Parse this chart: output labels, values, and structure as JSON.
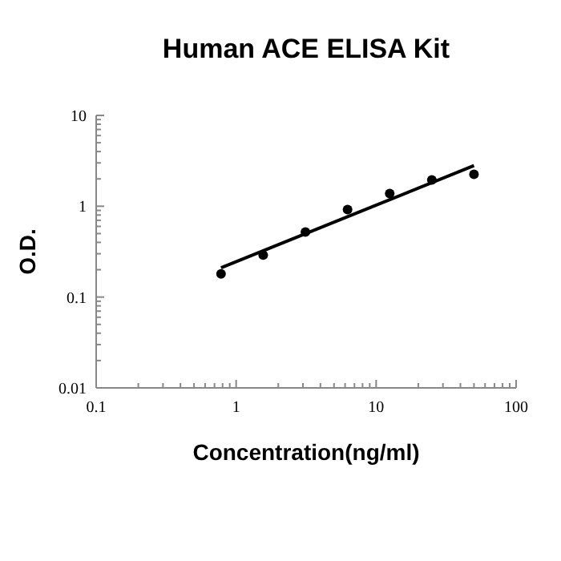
{
  "chart_data": {
    "type": "scatter",
    "title": "Human ACE ELISA Kit",
    "xlabel": "Concentration(ng/ml)",
    "ylabel": "O.D.",
    "log": "xy",
    "marker": "circle",
    "grid": false,
    "xlim": [
      0.1,
      100
    ],
    "ylim": [
      0.01,
      10
    ],
    "xticks": [
      0.1,
      {
        "value": 0.2,
        "label": null
      },
      {
        "value": 0.3,
        "label": null
      },
      {
        "value": 0.4,
        "label": null
      },
      {
        "value": 0.5,
        "label": null
      },
      {
        "value": 0.6,
        "label": null
      },
      {
        "value": 0.7,
        "label": null
      },
      {
        "value": 0.8,
        "label": null
      },
      {
        "value": 0.9,
        "label": null
      },
      1,
      {
        "value": 2,
        "label": null
      },
      {
        "value": 3,
        "label": null
      },
      {
        "value": 4,
        "label": null
      },
      {
        "value": 5,
        "label": null
      },
      {
        "value": 6,
        "label": null
      },
      {
        "value": 7,
        "label": null
      },
      {
        "value": 8,
        "label": null
      },
      {
        "value": 9,
        "label": null
      },
      10,
      {
        "value": 20,
        "label": null
      },
      {
        "value": 30,
        "label": null
      },
      {
        "value": 40,
        "label": null
      },
      {
        "value": 50,
        "label": null
      },
      {
        "value": 60,
        "label": null
      },
      {
        "value": 70,
        "label": null
      },
      {
        "value": 80,
        "label": null
      },
      {
        "value": 90,
        "label": null
      },
      100
    ],
    "yticks": [
      0.01,
      {
        "value": 0.02,
        "label": null
      },
      {
        "value": 0.03,
        "label": null
      },
      {
        "value": 0.04,
        "label": null
      },
      {
        "value": 0.05,
        "label": null
      },
      {
        "value": 0.06,
        "label": null
      },
      {
        "value": 0.07,
        "label": null
      },
      {
        "value": 0.08,
        "label": null
      },
      {
        "value": 0.09,
        "label": null
      },
      0.1,
      {
        "value": 0.2,
        "label": null
      },
      {
        "value": 0.3,
        "label": null
      },
      {
        "value": 0.4,
        "label": null
      },
      {
        "value": 0.5,
        "label": null
      },
      {
        "value": 0.6,
        "label": null
      },
      {
        "value": 0.7,
        "label": null
      },
      {
        "value": 0.8,
        "label": null
      },
      {
        "value": 0.9,
        "label": null
      },
      1,
      {
        "value": 2,
        "label": null
      },
      {
        "value": 3,
        "label": null
      },
      {
        "value": 4,
        "label": null
      },
      {
        "value": 5,
        "label": null
      },
      {
        "value": 6,
        "label": null
      },
      {
        "value": 7,
        "label": null
      },
      {
        "value": 8,
        "label": null
      },
      {
        "value": 9,
        "label": null
      },
      10
    ],
    "series": [
      {
        "color": "#000000",
        "x": [
          0.78,
          1.56,
          3.125,
          6.25,
          12.5,
          25,
          50
        ],
        "values": [
          0.18,
          0.29,
          0.52,
          0.92,
          1.38,
          1.95,
          2.25
        ]
      },
      {
        "type": "line",
        "color": "#000000",
        "marker": "none",
        "line_style": "solid",
        "x": [
          0.78,
          50
        ],
        "values": [
          0.21,
          2.8
        ]
      }
    ]
  }
}
